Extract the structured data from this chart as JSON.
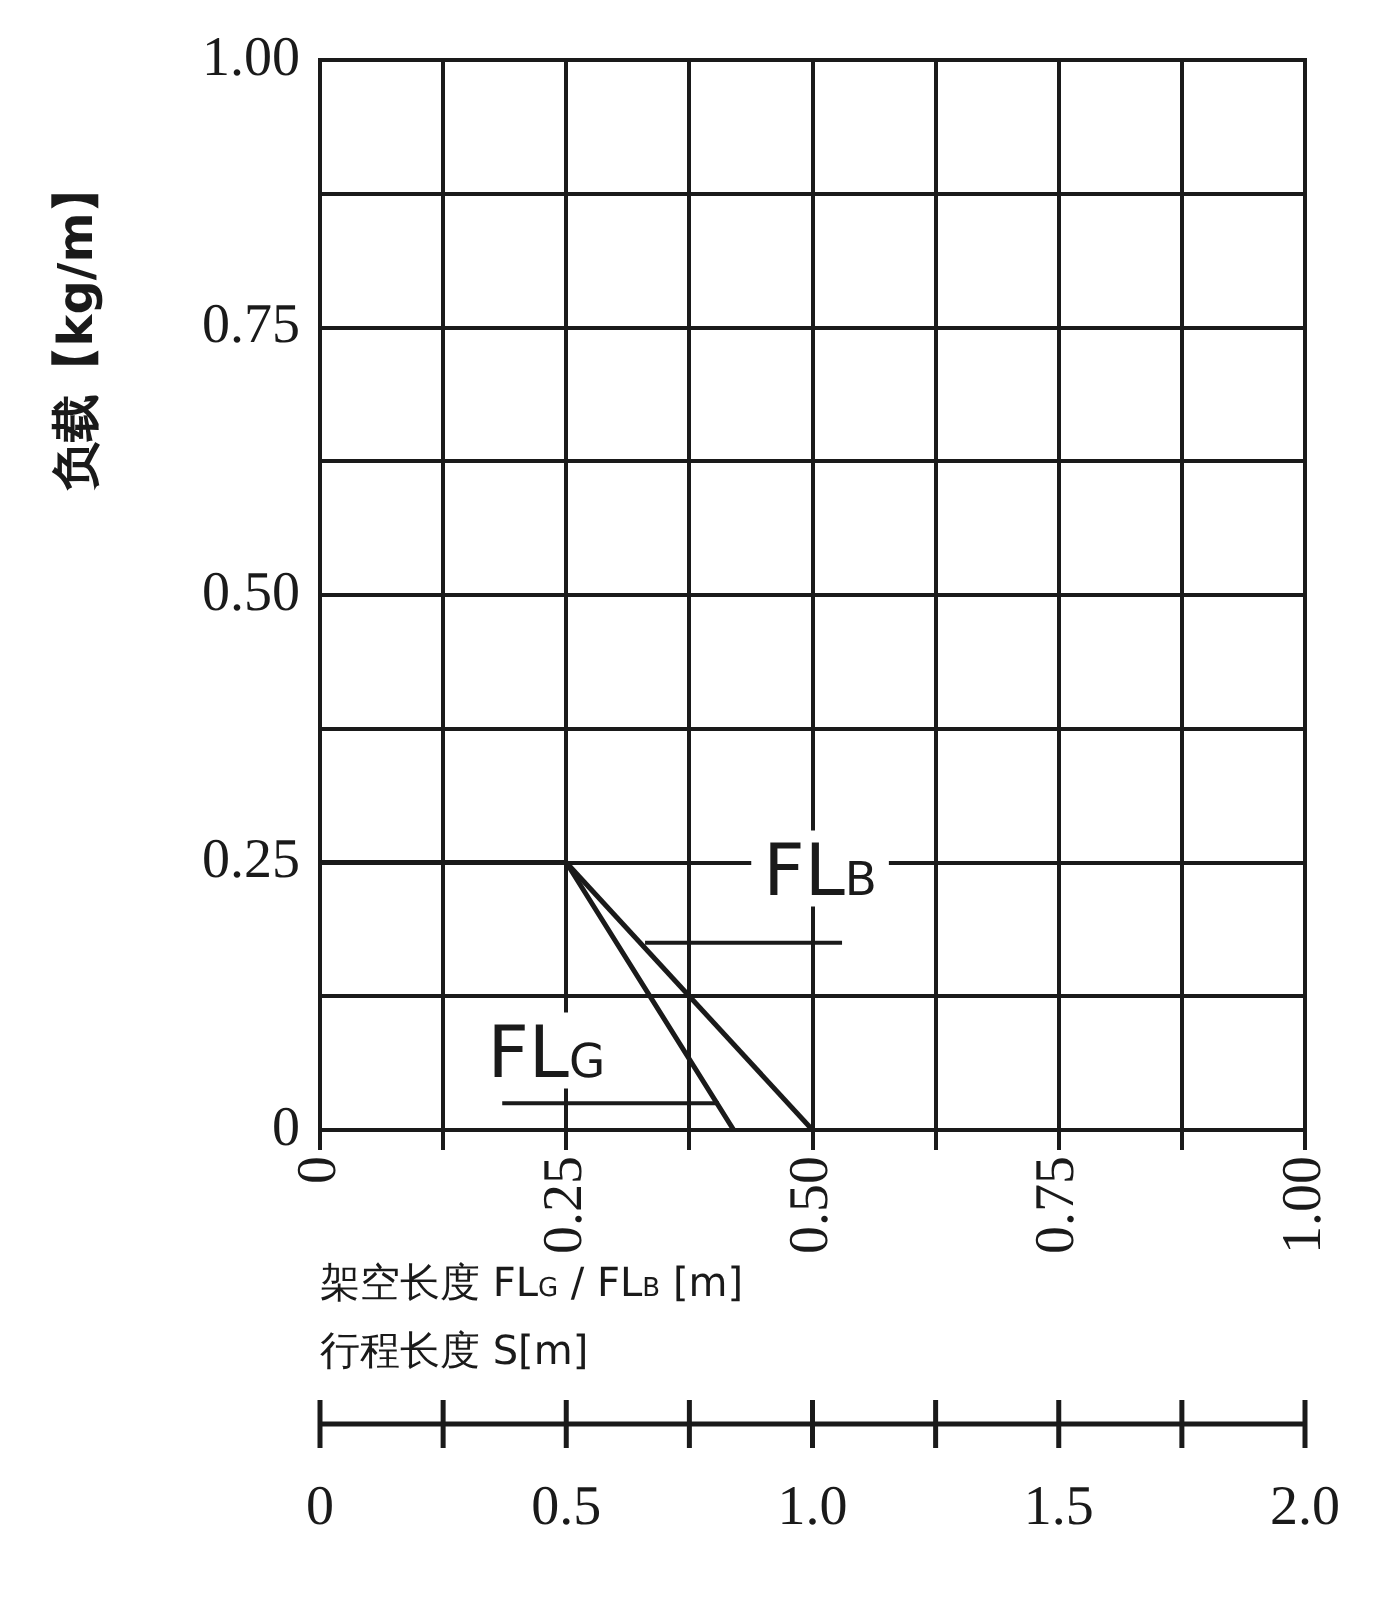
{
  "chart_data": {
    "type": "line",
    "ylabel": "负载【kg/m】",
    "xlabel": "架空长度 FL$_{G}$ / FL$_{B}$ [m]",
    "x2label": "行程长度 S[m]",
    "series": [
      {
        "name": "FL$_{G}$",
        "color": "#1a1a1a",
        "x": [
          0,
          0.25,
          0.42
        ],
        "values": [
          0.25,
          0.25,
          0
        ]
      },
      {
        "name": "FL$_{B}$",
        "color": "#1a1a1a",
        "x": [
          0.25,
          0.5
        ],
        "values": [
          0.25,
          0
        ]
      }
    ],
    "xlim": [
      0,
      1
    ],
    "ylim": [
      0,
      1
    ],
    "xticks": [
      0,
      {
        "value": 0.125,
        "label": null
      },
      {
        "value": 0.25,
        "label": "0.25"
      },
      {
        "value": 0.375,
        "label": null
      },
      {
        "value": 0.5,
        "label": "0.50"
      },
      {
        "value": 0.625,
        "label": null
      },
      {
        "value": 0.75,
        "label": "0.75"
      },
      {
        "value": 0.875,
        "label": null
      },
      {
        "value": 1,
        "label": "1.00"
      }
    ],
    "yticks": [
      0,
      {
        "value": 0.125,
        "label": null
      },
      {
        "value": 0.25,
        "label": "0.25"
      },
      {
        "value": 0.375,
        "label": null
      },
      {
        "value": 0.5,
        "label": "0.50"
      },
      {
        "value": 0.625,
        "label": null
      },
      {
        "value": 0.75,
        "label": "0.75"
      },
      {
        "value": 0.875,
        "label": null
      },
      {
        "value": 1,
        "label": "1.00"
      }
    ],
    "x2lim": [
      0,
      2
    ],
    "x2ticks": [
      0,
      {
        "value": 0.25,
        "label": null
      },
      {
        "value": 0.5,
        "label": "0.5"
      },
      {
        "value": 0.75,
        "label": null
      },
      {
        "value": 1,
        "label": "1.0"
      },
      {
        "value": 1.25,
        "label": null
      },
      {
        "value": 1.5,
        "label": "1.5"
      },
      {
        "value": 1.75,
        "label": null
      },
      {
        "value": 2,
        "label": "2.0"
      }
    ],
    "grid": true,
    "legend": false,
    "marker": "none",
    "line_style": "solid"
  }
}
